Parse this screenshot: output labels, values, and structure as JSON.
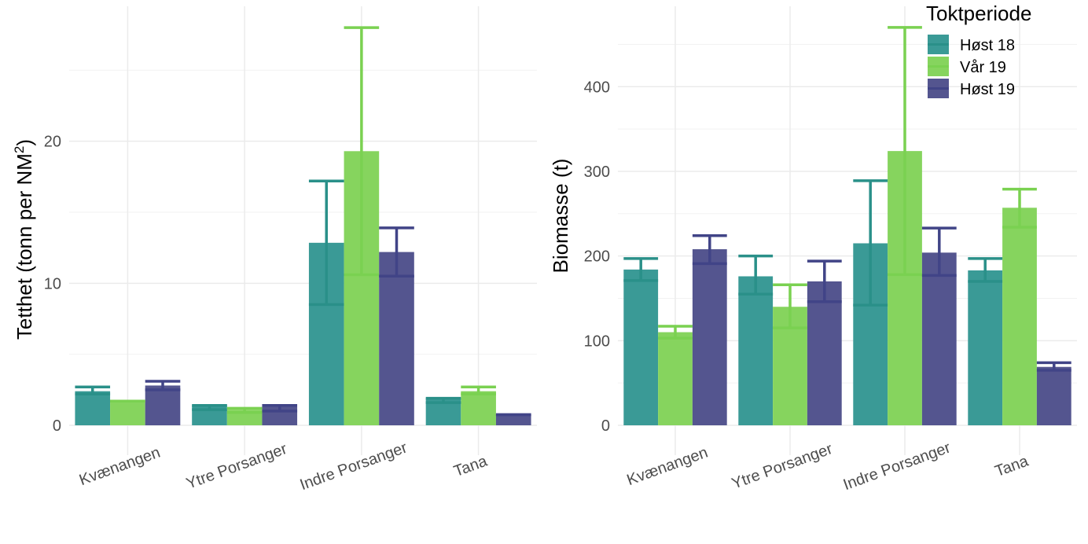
{
  "legend": {
    "title": "Toktperiode",
    "entries": [
      {
        "name": "Høst 18",
        "color": "#2a9089",
        "bar_color": "#3a9a96"
      },
      {
        "name": "Vår 19",
        "color": "#7ad151",
        "bar_color": "#86d45e"
      },
      {
        "name": "Høst 19",
        "color": "#414487",
        "bar_color": "#54558f"
      }
    ]
  },
  "chart_data": [
    {
      "type": "bar",
      "title": "",
      "xlabel": "",
      "ylabel": "Tetthet (tonn per NM2)",
      "ylabel_parts": {
        "main": "Tetthet (tonn per NM",
        "sup": "2",
        "end": ")"
      },
      "ylim": [
        0,
        29.5
      ],
      "yticks": [
        0,
        10,
        20
      ],
      "grid": true,
      "categories": [
        "Kvænangen",
        "Ytre Porsanger",
        "Indre Porsanger",
        "Tana"
      ],
      "series": [
        {
          "name": "Høst 18",
          "values": [
            2.4,
            1.4,
            12.85,
            1.9
          ],
          "err_low": [
            2.2,
            1.1,
            8.5,
            1.6
          ],
          "err_high": [
            2.7,
            1.4,
            17.2,
            1.9
          ]
        },
        {
          "name": "Vår 19",
          "values": [
            1.7,
            1.1,
            19.3,
            2.4
          ],
          "err_low": [
            1.7,
            0.9,
            10.6,
            2.2
          ],
          "err_high": [
            1.7,
            1.2,
            28.0,
            2.7
          ]
        },
        {
          "name": "Høst 19",
          "values": [
            2.8,
            1.3,
            12.2,
            0.75
          ],
          "err_low": [
            2.5,
            1.0,
            10.5,
            0.75
          ],
          "err_high": [
            3.1,
            1.4,
            13.9,
            0.75
          ]
        }
      ]
    },
    {
      "type": "bar",
      "title": "",
      "xlabel": "",
      "ylabel": "Biomasse (t)",
      "ylim": [
        0,
        495
      ],
      "yticks": [
        0,
        100,
        200,
        300,
        400
      ],
      "grid": true,
      "legend_position": "top-right",
      "categories": [
        "Kvænangen",
        "Ytre Porsanger",
        "Indre Porsanger",
        "Tana"
      ],
      "series": [
        {
          "name": "Høst 18",
          "values": [
            184,
            176,
            215,
            183
          ],
          "err_low": [
            171,
            155,
            142,
            170
          ],
          "err_high": [
            197,
            200,
            289,
            197
          ]
        },
        {
          "name": "Vår 19",
          "values": [
            110,
            140,
            324,
            257
          ],
          "err_low": [
            103,
            115,
            178,
            234
          ],
          "err_high": [
            117,
            166,
            470,
            279
          ]
        },
        {
          "name": "Høst 19",
          "values": [
            208,
            170,
            204,
            69
          ],
          "err_low": [
            191,
            146,
            177,
            65
          ],
          "err_high": [
            224,
            194,
            233,
            74
          ]
        }
      ]
    }
  ]
}
